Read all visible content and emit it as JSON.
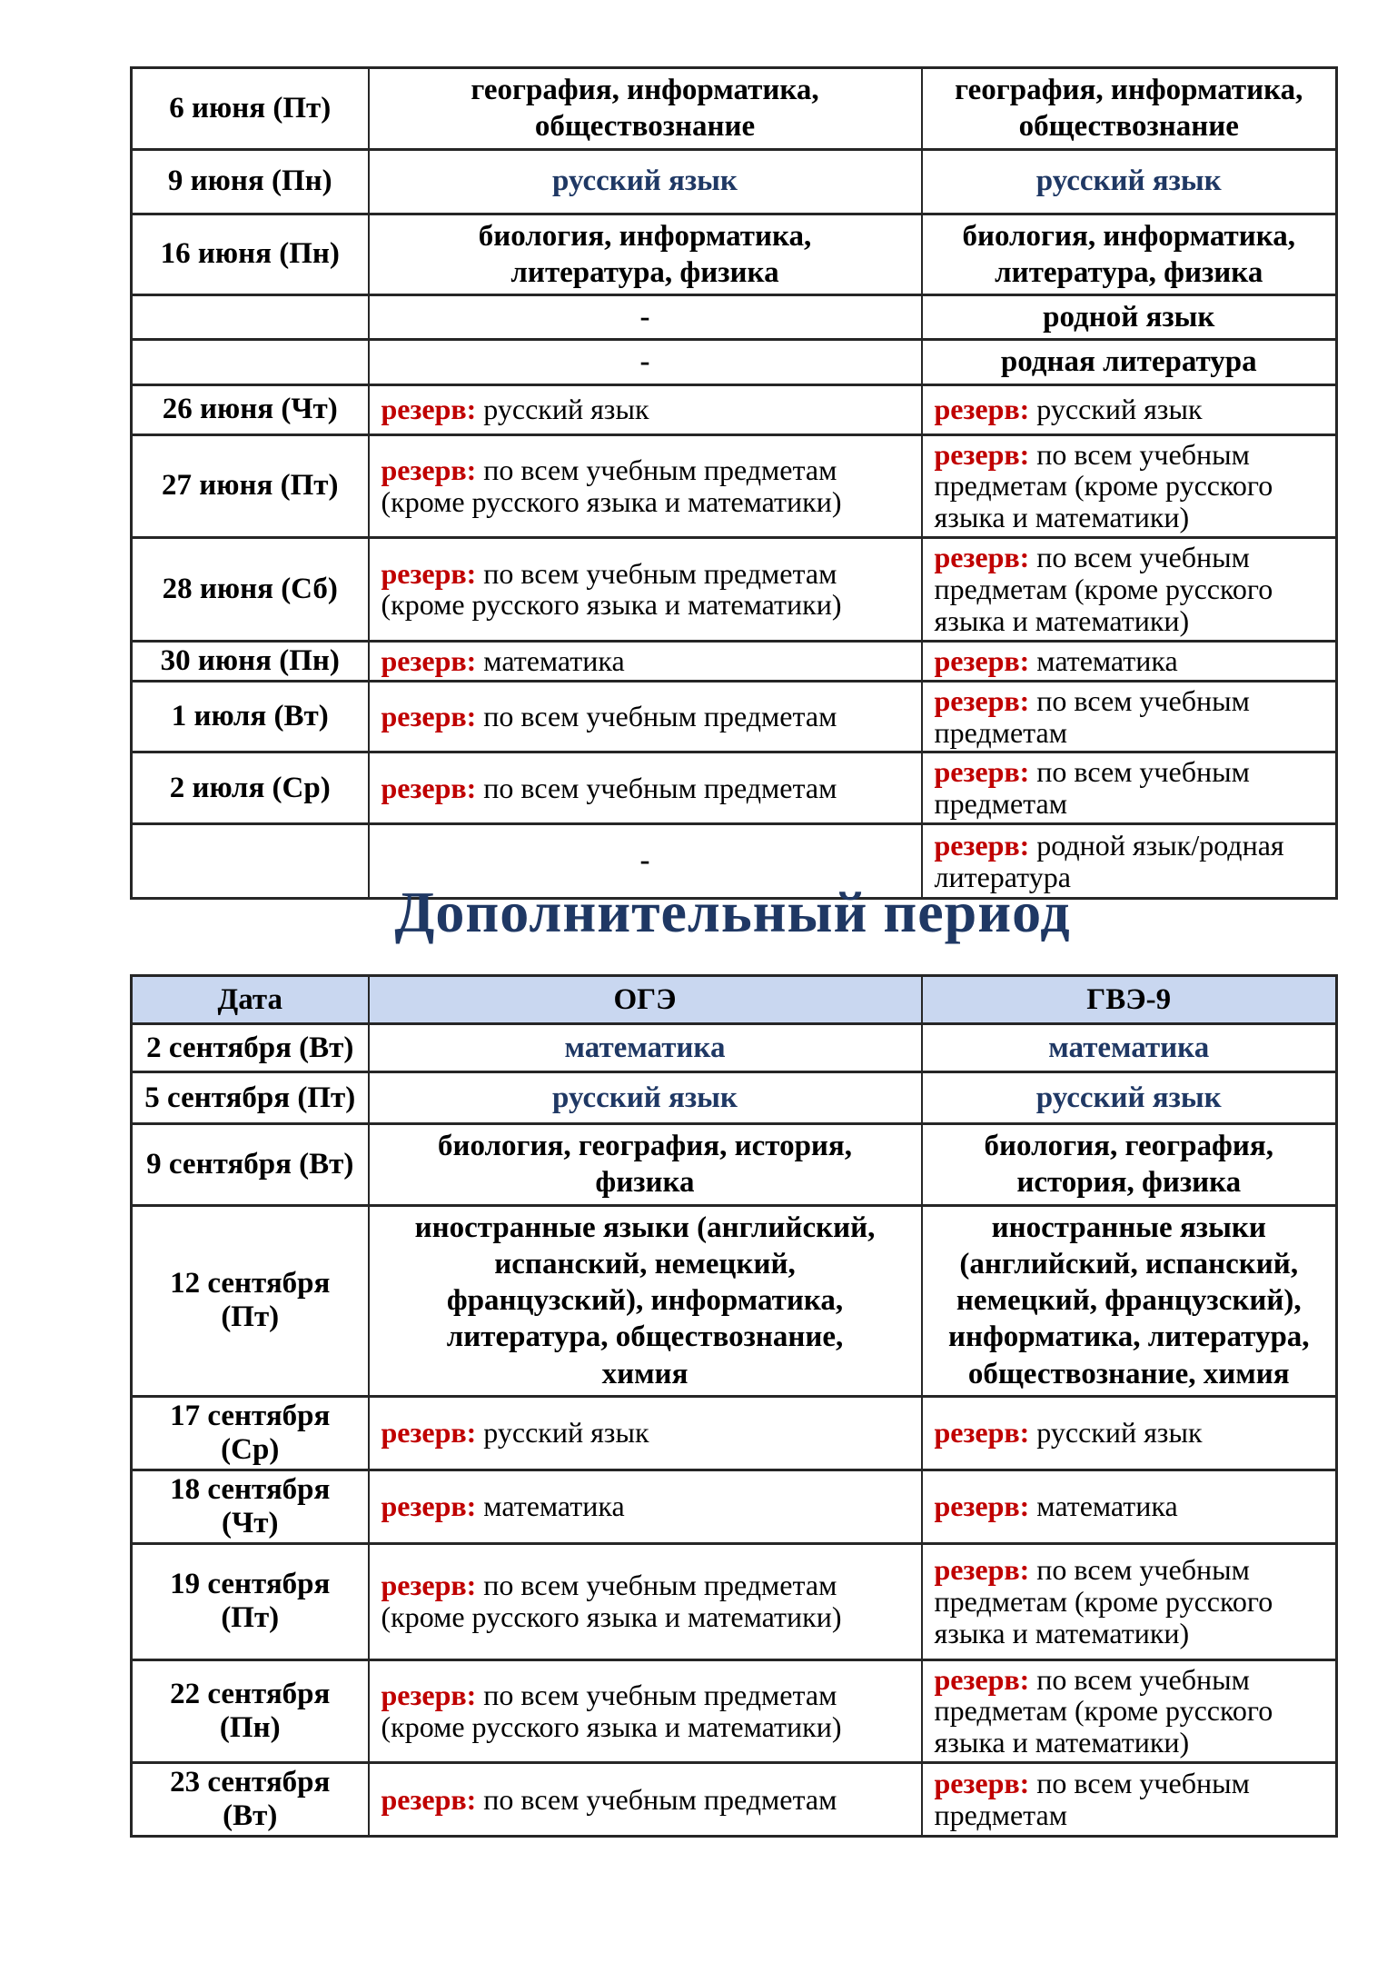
{
  "colors": {
    "navy_accent": "#1F3864",
    "reserve_red": "#C00000",
    "text_black": "#000000",
    "header_background": "#C9D7F0",
    "table_border": "#262626"
  },
  "title": "Дополнительный период",
  "table1": {
    "rows": [
      {
        "date": "6 июня (Пт)",
        "oge": {
          "type": "subject",
          "text": "география, информатика,\nобществознание"
        },
        "gve": {
          "type": "subject",
          "text": "география, информатика,\nобществознание"
        }
      },
      {
        "date": "9 июня (Пн)",
        "oge": {
          "type": "subject",
          "color": "navy",
          "text": "русский язык"
        },
        "gve": {
          "type": "subject",
          "color": "navy",
          "text": "русский язык"
        }
      },
      {
        "date": "16 июня (Пн)",
        "oge": {
          "type": "subject",
          "text": "биология, информатика,\nлитература, физика"
        },
        "gve": {
          "type": "subject",
          "text": "биология, информатика,\nлитература, физика"
        }
      },
      {
        "date": "",
        "oge": {
          "type": "dash",
          "text": "-"
        },
        "gve": {
          "type": "subject",
          "text": "родной язык"
        }
      },
      {
        "date": "",
        "oge": {
          "type": "dash",
          "text": "-"
        },
        "gve": {
          "type": "subject",
          "text": "родная литература"
        }
      },
      {
        "date": "26 июня (Чт)",
        "oge": {
          "type": "reserve",
          "label": "резерв:",
          "text": "русский язык"
        },
        "gve": {
          "type": "reserve",
          "label": "резерв:",
          "text": "русский язык"
        }
      },
      {
        "date": "27 июня (Пт)",
        "oge": {
          "type": "reserve",
          "label": "резерв:",
          "text": "по всем учебным предметам\n(кроме русского языка и математики)"
        },
        "gve": {
          "type": "reserve",
          "label": "резерв:",
          "text": "по всем учебным\nпредметам (кроме русского\nязыка и математики)"
        }
      },
      {
        "date": "28 июня (Сб)",
        "oge": {
          "type": "reserve",
          "label": "резерв:",
          "text": "по всем учебным предметам\n(кроме русского языка и математики)"
        },
        "gve": {
          "type": "reserve",
          "label": "резерв:",
          "text": "по всем учебным\nпредметам (кроме русского\nязыка и математики)"
        }
      },
      {
        "date": "30 июня (Пн)",
        "oge": {
          "type": "reserve",
          "label": "резерв:",
          "text": "математика"
        },
        "gve": {
          "type": "reserve",
          "label": "резерв:",
          "text": "математика"
        }
      },
      {
        "date": "1 июля (Вт)",
        "oge": {
          "type": "reserve",
          "label": "резерв:",
          "text": "по всем учебным предметам"
        },
        "gve": {
          "type": "reserve",
          "label": "резерв:",
          "text": "по всем учебным\nпредметам"
        }
      },
      {
        "date": "2 июля (Ср)",
        "oge": {
          "type": "reserve",
          "label": "резерв:",
          "text": "по всем учебным предметам"
        },
        "gve": {
          "type": "reserve",
          "label": "резерв:",
          "text": "по всем учебным\nпредметам"
        }
      },
      {
        "date": "",
        "oge": {
          "type": "dash",
          "text": "-"
        },
        "gve": {
          "type": "reserve",
          "label": "резерв:",
          "text": "родной язык/родная\nлитература"
        }
      }
    ]
  },
  "table2": {
    "headers": [
      "Дата",
      "ОГЭ",
      "ГВЭ-9"
    ],
    "rows": [
      {
        "date": "2 сентября (Вт)",
        "oge": {
          "type": "subject",
          "color": "navy",
          "text": "математика"
        },
        "gve": {
          "type": "subject",
          "color": "navy",
          "text": "математика"
        }
      },
      {
        "date": "5 сентября (Пт)",
        "oge": {
          "type": "subject",
          "color": "navy",
          "text": "русский язык"
        },
        "gve": {
          "type": "subject",
          "color": "navy",
          "text": "русский язык"
        }
      },
      {
        "date": "9 сентября (Вт)",
        "oge": {
          "type": "subject",
          "text": "биология, география, история,\nфизика"
        },
        "gve": {
          "type": "subject",
          "text": "биология, география,\nистория, физика"
        }
      },
      {
        "date": "12 сентября\n(Пт)",
        "oge": {
          "type": "subject",
          "text": "иностранные языки (английский,\nиспанский, немецкий,\nфранцузский), информатика,\nлитература, обществознание,\nхимия"
        },
        "gve": {
          "type": "subject",
          "text": "иностранные языки\n(английский, испанский,\nнемецкий, французский),\nинформатика, литература,\nобществознание, химия"
        }
      },
      {
        "date": "17 сентября\n(Ср)",
        "oge": {
          "type": "reserve",
          "label": "резерв:",
          "text": "русский язык"
        },
        "gve": {
          "type": "reserve",
          "label": "резерв:",
          "text": "русский язык"
        }
      },
      {
        "date": "18 сентября\n(Чт)",
        "oge": {
          "type": "reserve",
          "label": "резерв:",
          "text": "математика"
        },
        "gve": {
          "type": "reserve",
          "label": "резерв:",
          "text": "математика"
        }
      },
      {
        "date": "19 сентября\n(Пт)",
        "oge": {
          "type": "reserve",
          "label": "резерв:",
          "text": "по всем учебным предметам\n(кроме русского языка и математики)"
        },
        "gve": {
          "type": "reserve",
          "label": "резерв:",
          "text": "по всем учебным\nпредметам (кроме русского\nязыка и математики)"
        }
      },
      {
        "date": "22 сентября\n(Пн)",
        "oge": {
          "type": "reserve",
          "label": "резерв:",
          "text": "по всем учебным предметам\n(кроме русского языка и математики)"
        },
        "gve": {
          "type": "reserve",
          "label": "резерв:",
          "text": "по всем учебным\nпредметам (кроме русского\nязыка и математики)"
        }
      },
      {
        "date": "23 сентября\n(Вт)",
        "oge": {
          "type": "reserve",
          "label": "резерв:",
          "text": "по всем учебным предметам"
        },
        "gve": {
          "type": "reserve",
          "label": "резерв:",
          "text": "по всем учебным\nпредметам"
        }
      }
    ]
  }
}
